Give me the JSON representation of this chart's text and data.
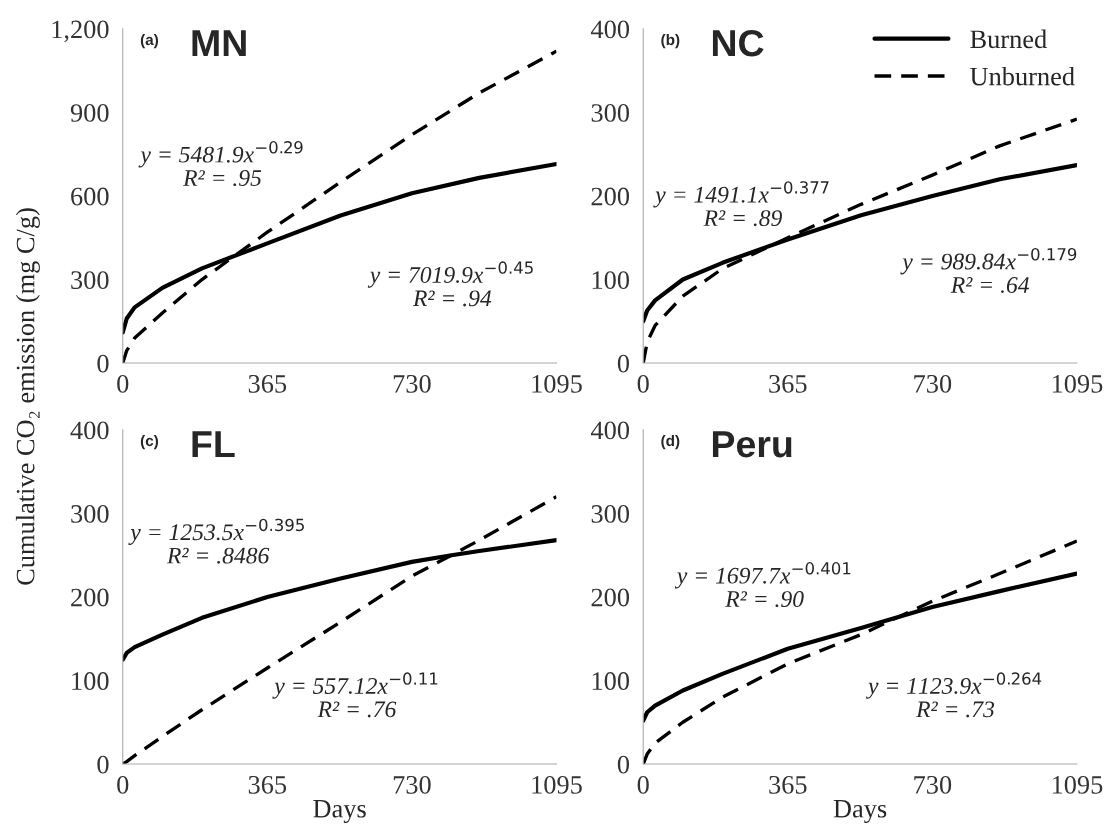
{
  "chart_data": [
    {
      "type": "line",
      "title": "MN",
      "subtitle": "(a)",
      "ylabel": "Cumulative CO₂ emission (mg C/g)",
      "x": [
        0,
        10,
        30,
        100,
        200,
        365,
        550,
        730,
        900,
        1095
      ],
      "series": [
        {
          "color": "#000000",
          "line_style": "solid",
          "values": [
            110,
            160,
            200,
            270,
            340,
            430,
            530,
            610,
            665,
            715
          ]
        },
        {
          "color": "#000000",
          "line_style": "dashed",
          "values": [
            0,
            45,
            90,
            180,
            300,
            470,
            650,
            820,
            970,
            1120
          ]
        }
      ],
      "xlim": [
        0,
        1095
      ],
      "xticks": [
        0,
        365,
        730,
        1095
      ],
      "ylim": [
        0,
        1200
      ],
      "yticks": [
        0,
        300,
        600,
        900,
        {
          "value": 1200,
          "label": "1,200"
        }
      ],
      "annotations": [
        "y = 5481.9x$^{−0.29}$\nR² = .95",
        "y = 7019.9x$^{−0.45}$\nR² = .94"
      ]
    },
    {
      "type": "line",
      "title": "NC",
      "subtitle": "(b)",
      "x": [
        0,
        10,
        30,
        100,
        200,
        365,
        550,
        730,
        900,
        1095
      ],
      "series": [
        {
          "name": "Burned",
          "color": "#000000",
          "line_style": "solid",
          "values": [
            50,
            63,
            75,
            100,
            120,
            148,
            177,
            200,
            220,
            237
          ]
        },
        {
          "name": "Unburned",
          "color": "#000000",
          "line_style": "dashed",
          "values": [
            0,
            25,
            45,
            80,
            113,
            150,
            190,
            225,
            260,
            292
          ]
        }
      ],
      "xlim": [
        0,
        1095
      ],
      "xticks": [
        0,
        365,
        730,
        1095
      ],
      "ylim": [
        0,
        400
      ],
      "yticks": [
        0,
        100,
        200,
        300,
        400
      ],
      "legend": "top right",
      "annotations": [
        "y = 1491.1x$^{−0.377}$\nR² = .89",
        "y = 989.84x$^{−0.179}$\nR² = .64"
      ]
    },
    {
      "type": "line",
      "title": "FL",
      "subtitle": "(c)",
      "xlabel": "Days",
      "x": [
        0,
        10,
        30,
        100,
        200,
        365,
        550,
        730,
        830,
        900,
        1095
      ],
      "series": [
        {
          "color": "#000000",
          "line_style": "solid",
          "values": [
            125,
            133,
            140,
            155,
            175,
            200,
            222,
            242,
            250,
            255,
            268
          ]
        },
        {
          "color": "#000000",
          "line_style": "dashed",
          "values": [
            0,
            3,
            10,
            33,
            65,
            115,
            170,
            225,
            250,
            268,
            320
          ]
        }
      ],
      "xlim": [
        0,
        1095
      ],
      "xticks": [
        0,
        365,
        730,
        1095
      ],
      "ylim": [
        0,
        400
      ],
      "yticks": [
        0,
        100,
        200,
        300,
        400
      ],
      "annotations": [
        "y = 1253.5x$^{−0.395}$\nR² = .8486",
        "y = 557.12x$^{−0.11}$\nR² = .76"
      ]
    },
    {
      "type": "line",
      "title": "Peru",
      "subtitle": "(d)",
      "xlabel": "Days",
      "x": [
        0,
        10,
        30,
        100,
        200,
        365,
        550,
        730,
        900,
        1095
      ],
      "series": [
        {
          "color": "#000000",
          "line_style": "solid",
          "values": [
            52,
            62,
            70,
            88,
            108,
            138,
            163,
            188,
            207,
            228
          ]
        },
        {
          "color": "#000000",
          "line_style": "dashed",
          "values": [
            0,
            12,
            25,
            50,
            80,
            120,
            155,
            195,
            228,
            267
          ]
        }
      ],
      "xlim": [
        0,
        1095
      ],
      "xticks": [
        0,
        365,
        730,
        1095
      ],
      "ylim": [
        0,
        400
      ],
      "yticks": [
        0,
        100,
        200,
        300,
        400
      ],
      "annotations": [
        "y = 1697.7x$^{−0.401}$\nR² = .90",
        "y = 1123.9x$^{−0.264}$\nR² = .73"
      ]
    }
  ]
}
